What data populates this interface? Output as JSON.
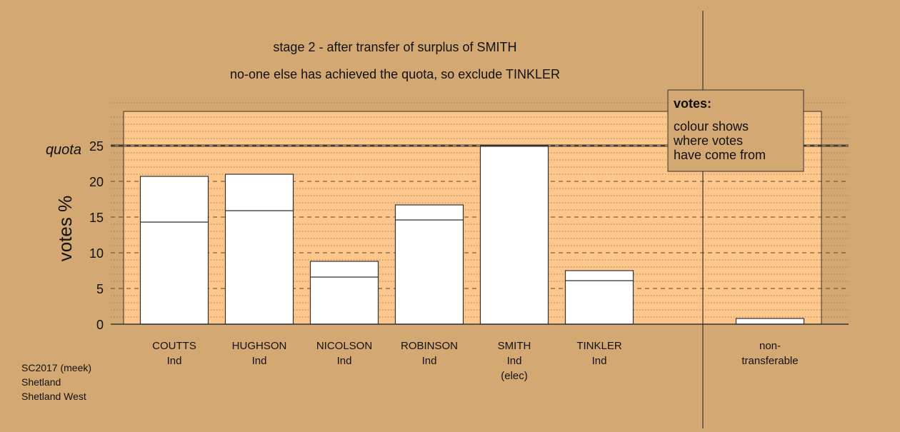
{
  "colors": {
    "background": "#d4a872",
    "plot_fill": "#fdc68a",
    "bar_fill": "#ffffff",
    "line": "#333333"
  },
  "chart_data": {
    "type": "bar",
    "title": "stage 2 - after transfer of surplus of SMITH",
    "subtitle": "no-one else has achieved the quota, so exclude TINKLER",
    "ylabel": "votes %",
    "ylim": [
      0,
      30
    ],
    "yticks": [
      0,
      5,
      10,
      15,
      20,
      25
    ],
    "grid": true,
    "quota": {
      "label": "quota",
      "value": 25
    },
    "categories": [
      {
        "name": "COUTTS",
        "lines": [
          "COUTTS",
          "Ind"
        ]
      },
      {
        "name": "HUGHSON",
        "lines": [
          "HUGHSON",
          "Ind"
        ]
      },
      {
        "name": "NICOLSON",
        "lines": [
          "NICOLSON",
          "Ind"
        ]
      },
      {
        "name": "ROBINSON",
        "lines": [
          "ROBINSON",
          "Ind"
        ]
      },
      {
        "name": "SMITH",
        "lines": [
          "SMITH",
          "Ind",
          "(elec)"
        ]
      },
      {
        "name": "TINKLER",
        "lines": [
          "TINKLER",
          "Ind"
        ]
      },
      {
        "name": "non-transferable",
        "lines": [
          "non-",
          "transferable"
        ]
      }
    ],
    "series": [
      {
        "values": [
          14.3,
          15.9,
          6.6,
          14.6,
          25.0,
          6.1,
          0.0
        ]
      },
      {
        "values": [
          6.4,
          5.1,
          2.2,
          2.1,
          0.0,
          1.4,
          0.8
        ]
      }
    ],
    "legend": {
      "position": "top-right",
      "title": "votes:",
      "lines": [
        "colour shows",
        "where votes",
        "have come from"
      ]
    }
  },
  "footer": {
    "lines": [
      "SC2017 (meek)",
      "Shetland",
      "Shetland West"
    ]
  }
}
